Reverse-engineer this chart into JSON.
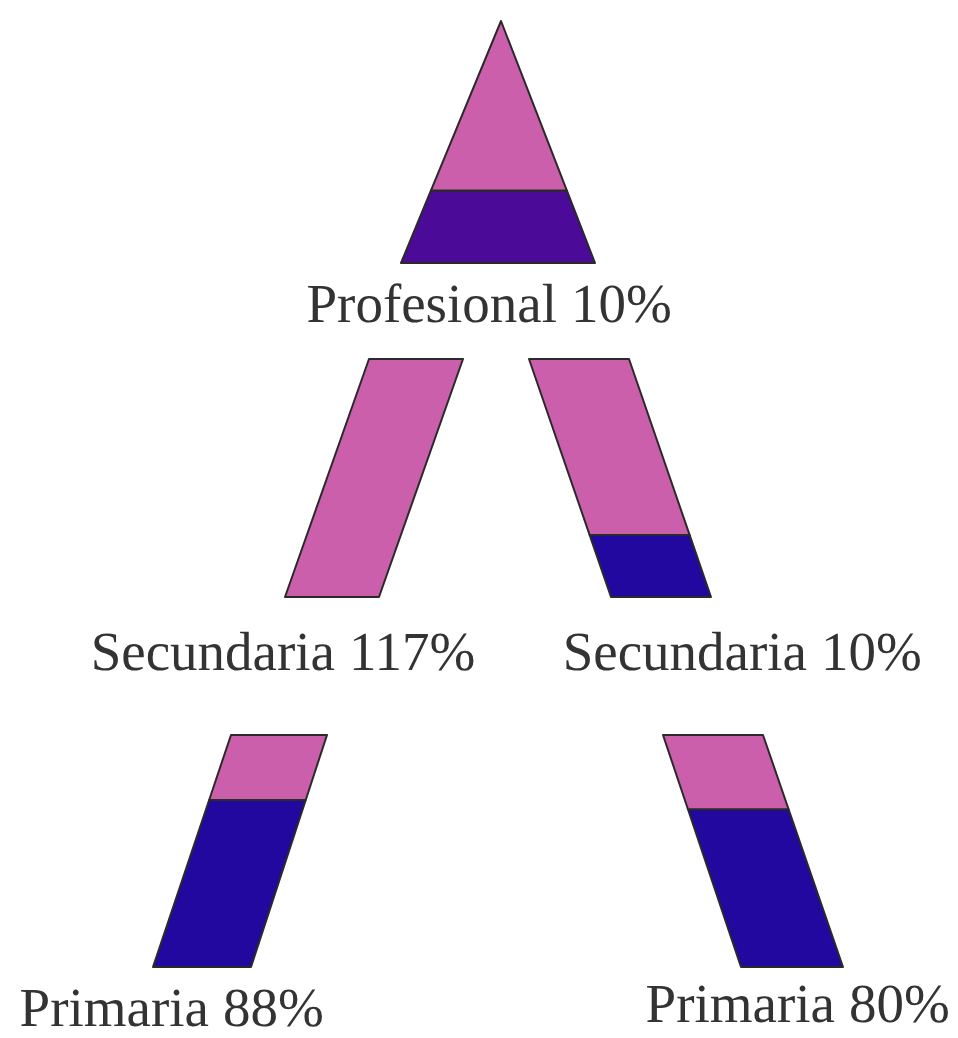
{
  "chart_data": {
    "type": "other",
    "categories": [
      "Profesional",
      "Secundaria",
      "Secundaria",
      "Primaria",
      "Primaria"
    ],
    "values": [
      10,
      117,
      10,
      88,
      80
    ],
    "value_labels": [
      "10%",
      "117%",
      "10%",
      "88%",
      "80%"
    ]
  }
}
